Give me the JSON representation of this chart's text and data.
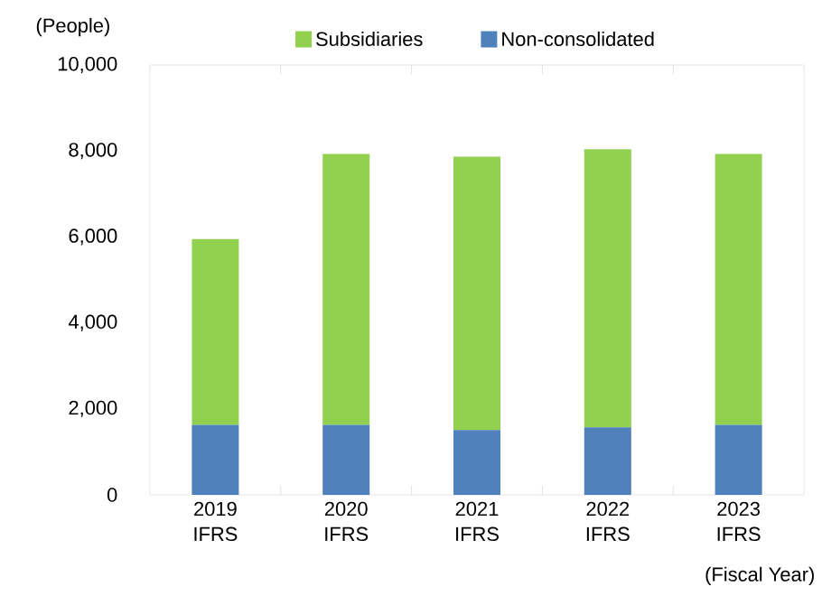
{
  "chart_data": {
    "type": "bar",
    "stacked": true,
    "ylabel": "(People)",
    "xlabel": "(Fiscal Year)",
    "categories": [
      "2019 IFRS",
      "2020 IFRS",
      "2021 IFRS",
      "2022 IFRS",
      "2023 IFRS"
    ],
    "series": [
      {
        "name": "Non-consolidated",
        "color": "#4f81bd",
        "values": [
          1630,
          1630,
          1510,
          1570,
          1630
        ]
      },
      {
        "name": "Subsidiaries",
        "color": "#92d050",
        "values": [
          4320,
          6300,
          6360,
          6470,
          6300
        ]
      }
    ],
    "ylim": [
      0,
      10000
    ],
    "yticks": [
      {
        "value": 0,
        "label": "0"
      },
      {
        "value": 2000,
        "label": "2,000"
      },
      {
        "value": 4000,
        "label": "4,000"
      },
      {
        "value": 6000,
        "label": "6,000"
      },
      {
        "value": 8000,
        "label": "8,000"
      },
      {
        "value": 10000,
        "label": "10,000"
      }
    ],
    "grid": false,
    "legend": "top"
  }
}
